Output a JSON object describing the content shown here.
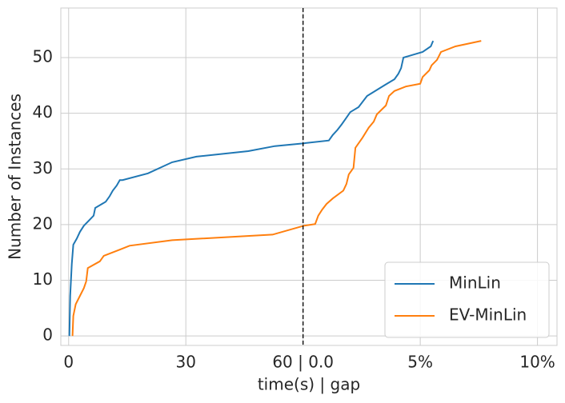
{
  "chart_data": {
    "type": "line",
    "xlabel": "time(s) | gap",
    "ylabel": "Number of Instances",
    "xlim": [
      -2,
      125
    ],
    "ylim": [
      -1.7,
      58.9
    ],
    "xticks": [
      0,
      30,
      {
        "value": 60,
        "label": "60 | 0.0"
      },
      {
        "value": 90,
        "label": "5%"
      },
      {
        "value": 120,
        "label": "10%"
      }
    ],
    "yticks": [
      0,
      10,
      20,
      30,
      40,
      50
    ],
    "grid": true,
    "vline": 60,
    "legend": "lower right",
    "series": [
      {
        "name": "MinLin",
        "color": "#1f77b4",
        "x": [
          0.2,
          0.4,
          0.8,
          1.2,
          2.1,
          2.9,
          3.9,
          5.3,
          6.4,
          6.8,
          9.5,
          10.5,
          11.3,
          12.3,
          13.1,
          13.8,
          20.3,
          26.5,
          32.7,
          46,
          52.8,
          60.2,
          66.6,
          67.6,
          68.8,
          69.9,
          70.9,
          72.1,
          74.2,
          76.4,
          81,
          83.4,
          84.4,
          85.1,
          85.7,
          90.6,
          92.7,
          93.3
        ],
        "values": [
          0,
          7.2,
          12.9,
          16.4,
          17.5,
          18.7,
          19.8,
          20.8,
          21.6,
          23,
          24.1,
          25.1,
          26.1,
          27,
          28,
          28,
          29.2,
          31.2,
          32.2,
          33.2,
          34.1,
          34.6,
          35.1,
          36.1,
          37,
          38,
          39,
          40.2,
          41.1,
          43.1,
          45.1,
          46.1,
          47.1,
          48.1,
          50,
          51,
          52,
          53
        ]
      },
      {
        "name": "EV-MinLin",
        "color": "#ff7f0e",
        "x": [
          1,
          1.2,
          1.8,
          2.9,
          3.9,
          4.5,
          4.9,
          8,
          9,
          13.1,
          15.6,
          26.5,
          52.2,
          60.2,
          63.1,
          63.9,
          64.9,
          66,
          67.6,
          70.3,
          71.1,
          71.7,
          72.9,
          73.4,
          75.2,
          76.8,
          78.1,
          78.9,
          81.2,
          82,
          83.4,
          86.3,
          90,
          90.6,
          92.3,
          92.9,
          94.3,
          95.3,
          99,
          105.6
        ],
        "values": [
          0,
          3.6,
          5.7,
          7.2,
          8.6,
          9.8,
          12.2,
          13.4,
          14.4,
          15.5,
          16.2,
          17.2,
          18.2,
          19.8,
          20.1,
          21.6,
          22.7,
          23.7,
          24.7,
          26.1,
          27.3,
          29,
          30.2,
          33.8,
          35.6,
          37.4,
          38.5,
          39.8,
          41.4,
          43.1,
          44,
          44.8,
          45.3,
          46.5,
          47.7,
          48.6,
          49.6,
          51,
          52,
          53
        ]
      }
    ]
  }
}
